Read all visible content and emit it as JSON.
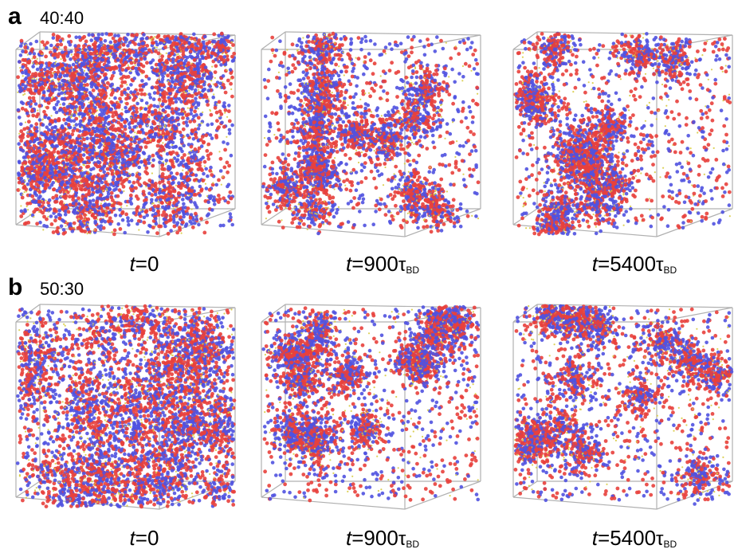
{
  "panels": [
    {
      "letter": "a",
      "ratio": "40:40",
      "snapshots": [
        {
          "time_var": "t",
          "time_value": "=0",
          "tau": "",
          "tau_sub": ""
        },
        {
          "time_var": "t",
          "time_value": "=900",
          "tau": "τ",
          "tau_sub": "BD"
        },
        {
          "time_var": "t",
          "time_value": "=5400",
          "tau": "τ",
          "tau_sub": "BD"
        }
      ]
    },
    {
      "letter": "b",
      "ratio": "50:30",
      "snapshots": [
        {
          "time_var": "t",
          "time_value": "=0",
          "tau": "",
          "tau_sub": ""
        },
        {
          "time_var": "t",
          "time_value": "=900",
          "tau": "τ",
          "tau_sub": "BD"
        },
        {
          "time_var": "t",
          "time_value": "=5400",
          "tau": "τ",
          "tau_sub": "BD"
        }
      ]
    }
  ],
  "particle_colors": {
    "red": "#e8403c",
    "blue": "#5052e0",
    "yellow": "#d8cc45",
    "box_edge": "#b0b0b0"
  }
}
